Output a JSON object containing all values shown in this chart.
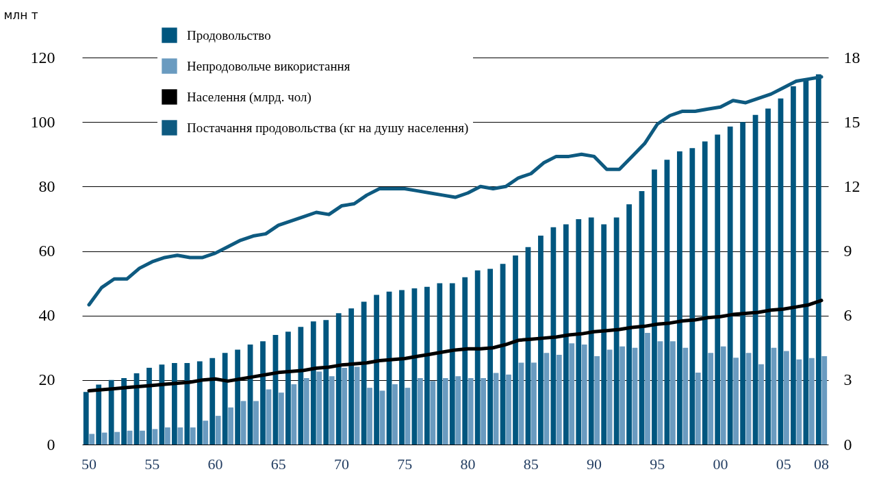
{
  "chart_data": {
    "type": "bar",
    "ylabel": "млн т",
    "categories": [
      "50",
      null,
      null,
      null,
      null,
      "55",
      null,
      null,
      null,
      null,
      "60",
      null,
      null,
      null,
      null,
      "65",
      null,
      null,
      null,
      null,
      "70",
      null,
      null,
      null,
      null,
      "75",
      null,
      null,
      null,
      null,
      "80",
      null,
      null,
      null,
      null,
      "85",
      null,
      null,
      null,
      null,
      "90",
      null,
      null,
      null,
      null,
      "95",
      null,
      null,
      null,
      null,
      "00",
      null,
      null,
      null,
      null,
      "05",
      null,
      null,
      "08"
    ],
    "series": [
      {
        "name": "Продовольство",
        "color": "#00567f",
        "values": [
          16.3,
          18.6,
          20.0,
          20.6,
          22.1,
          23.8,
          24.8,
          25.3,
          25.3,
          25.8,
          26.8,
          28.4,
          29.4,
          31.0,
          32.0,
          34.0,
          35.0,
          36.5,
          38.2,
          38.6,
          40.7,
          42.2,
          44.3,
          46.4,
          47.4,
          47.9,
          48.4,
          48.9,
          50.0,
          50.0,
          51.9,
          54.0,
          54.5,
          56.0,
          58.6,
          61.2,
          64.8,
          67.4,
          68.3,
          69.9,
          70.4,
          68.3,
          70.4,
          74.5,
          78.6,
          85.3,
          88.3,
          90.9,
          91.9,
          94.0,
          96.1,
          98.6,
          100.0,
          102.2,
          104.2,
          107.3,
          111.1,
          113.0,
          114.8
        ]
      },
      {
        "name": "Непродовольче використання",
        "color": "#6a9bc0",
        "values": [
          3.3,
          3.7,
          3.9,
          4.3,
          4.3,
          4.8,
          5.3,
          5.3,
          5.3,
          7.4,
          8.9,
          11.5,
          13.5,
          13.5,
          17.1,
          16.1,
          18.7,
          20.6,
          22.6,
          21.2,
          23.8,
          24.1,
          17.6,
          16.7,
          18.7,
          17.6,
          20.6,
          19.7,
          20.6,
          21.2,
          20.6,
          20.6,
          22.2,
          21.7,
          25.4,
          25.4,
          28.4,
          27.8,
          31.4,
          31.0,
          27.4,
          29.4,
          30.4,
          30.0,
          34.6,
          32.0,
          32.0,
          30.0,
          22.3,
          28.4,
          30.4,
          26.9,
          28.4,
          24.9,
          30.0,
          29.0,
          26.4,
          26.8,
          27.4
        ]
      },
      {
        "name": "Населення (млрд. чол)",
        "type": "line",
        "axis": "y2",
        "color": "#000000",
        "values": [
          2.5,
          2.55,
          2.6,
          2.65,
          2.7,
          2.75,
          2.8,
          2.85,
          2.9,
          3.0,
          3.05,
          2.95,
          3.05,
          3.15,
          3.25,
          3.35,
          3.4,
          3.45,
          3.55,
          3.6,
          3.7,
          3.75,
          3.8,
          3.9,
          3.95,
          4.0,
          4.1,
          4.2,
          4.3,
          4.4,
          4.45,
          4.45,
          4.5,
          4.65,
          4.85,
          4.9,
          4.95,
          5.0,
          5.1,
          5.15,
          5.25,
          5.3,
          5.35,
          5.45,
          5.5,
          5.6,
          5.65,
          5.75,
          5.8,
          5.9,
          5.95,
          6.05,
          6.1,
          6.15,
          6.25,
          6.3,
          6.4,
          6.5,
          6.7
        ]
      },
      {
        "name": "Постачання продовольства (кг на душу населення)",
        "type": "line",
        "axis": "y2",
        "color": "#0e5a80",
        "values": [
          6.5,
          7.3,
          7.7,
          7.7,
          8.2,
          8.5,
          8.7,
          8.8,
          8.7,
          8.7,
          8.9,
          9.2,
          9.5,
          9.7,
          9.8,
          10.2,
          10.4,
          10.6,
          10.8,
          10.7,
          11.1,
          11.2,
          11.6,
          11.9,
          11.9,
          11.9,
          11.8,
          11.7,
          11.6,
          11.5,
          11.7,
          12.0,
          11.9,
          12.0,
          12.4,
          12.6,
          13.1,
          13.4,
          13.4,
          13.5,
          13.4,
          12.8,
          12.8,
          13.4,
          14.0,
          14.9,
          15.3,
          15.5,
          15.5,
          15.6,
          15.7,
          16.0,
          15.9,
          16.1,
          16.3,
          16.6,
          16.9,
          17.0,
          17.1
        ]
      }
    ],
    "ylim": [
      0,
      120
    ],
    "yticks": [
      0,
      20,
      40,
      60,
      80,
      100,
      120
    ],
    "y2lim": [
      0,
      18
    ],
    "y2ticks": [
      0,
      3,
      6,
      9,
      12,
      15,
      18
    ],
    "grid": "y",
    "legend": "top left"
  }
}
